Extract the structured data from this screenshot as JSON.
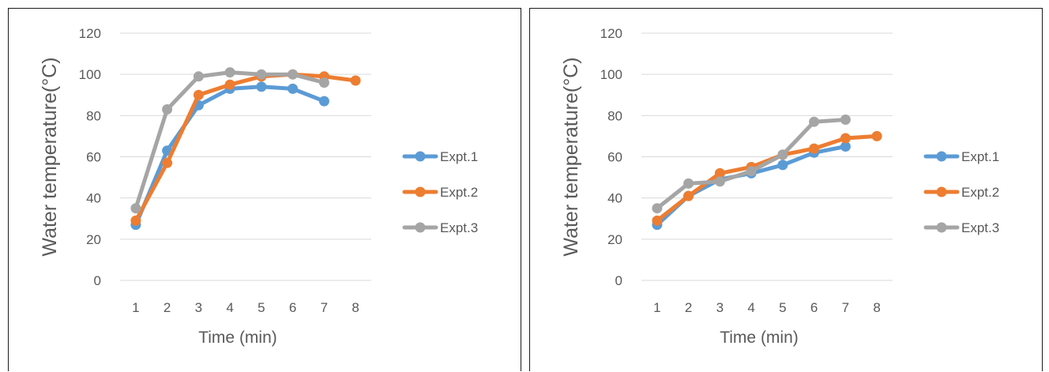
{
  "chart_data": [
    {
      "type": "line",
      "title": "",
      "xlabel": "Time (min)",
      "ylabel": "Water temperature(°C)",
      "categories": [
        "1",
        "2",
        "3",
        "4",
        "5",
        "6",
        "7",
        "8"
      ],
      "ylim": [
        0,
        120
      ],
      "yticks": [
        "0",
        "20",
        "40",
        "60",
        "80",
        "100",
        "120"
      ],
      "grid": true,
      "legend": "right",
      "series": [
        {
          "name": "Expt.1",
          "color": "#5B9BD5",
          "values": [
            27,
            63,
            85,
            93,
            94,
            93,
            87,
            null
          ]
        },
        {
          "name": "Expt.2",
          "color": "#ED7D31",
          "values": [
            29,
            57,
            90,
            95,
            99,
            100,
            99,
            97
          ]
        },
        {
          "name": "Expt.3",
          "color": "#A5A5A5",
          "values": [
            35,
            83,
            99,
            101,
            100,
            100,
            96,
            null
          ]
        }
      ]
    },
    {
      "type": "line",
      "title": "",
      "xlabel": "Time (min)",
      "ylabel": "Water temperature(°C)",
      "categories": [
        "1",
        "2",
        "3",
        "4",
        "5",
        "6",
        "7",
        "8"
      ],
      "ylim": [
        0,
        120
      ],
      "yticks": [
        "0",
        "20",
        "40",
        "60",
        "80",
        "100",
        "120"
      ],
      "grid": true,
      "legend": "right",
      "series": [
        {
          "name": "Expt.1",
          "color": "#5B9BD5",
          "values": [
            27,
            41,
            49,
            52,
            56,
            62,
            65,
            null
          ]
        },
        {
          "name": "Expt.2",
          "color": "#ED7D31",
          "values": [
            29,
            41,
            52,
            55,
            61,
            64,
            69,
            70
          ]
        },
        {
          "name": "Expt.3",
          "color": "#A5A5A5",
          "values": [
            35,
            47,
            48,
            53,
            61,
            77,
            78,
            null
          ]
        }
      ]
    }
  ]
}
